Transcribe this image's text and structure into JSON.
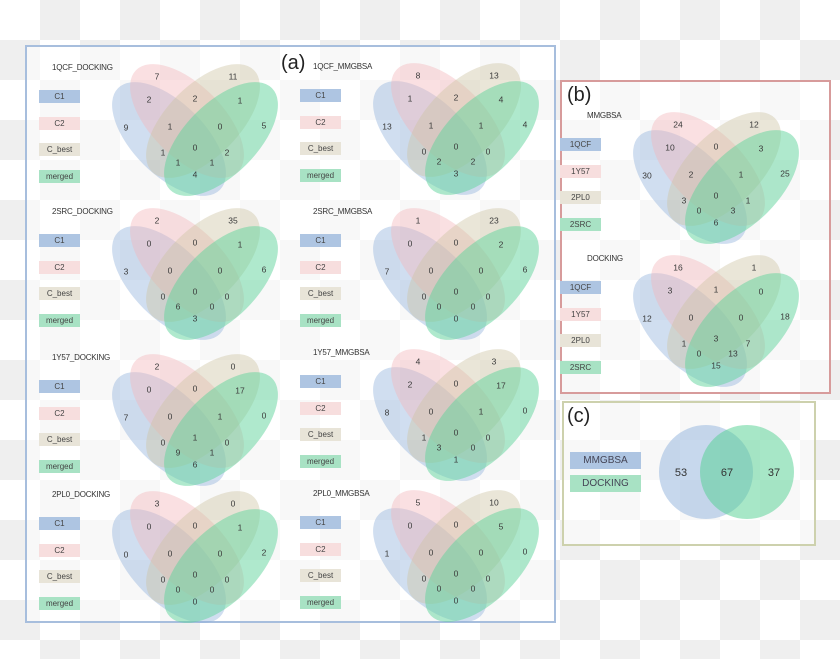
{
  "colors": {
    "set1": "#8fb1dc",
    "set2": "#f2b6bb",
    "set3": "#cdc3a2",
    "set4": "#5fd39b",
    "legend1": "#aec5e2",
    "legend2": "#f7dede",
    "legend3": "#e8e4d8",
    "legend4": "#a8e2c4"
  },
  "panels": {
    "a": {
      "label": "(a)",
      "venns": [
        {
          "title": "1QCF_DOCKING",
          "sets": [
            "C1",
            "C2",
            "C_best",
            "merged"
          ],
          "counts": [
            7,
            11,
            2,
            2,
            1,
            9,
            1,
            0,
            5,
            0,
            1,
            2,
            1,
            1,
            4
          ]
        },
        {
          "title": "1QCF_MMGBSA",
          "sets": [
            "C1",
            "C2",
            "C_best",
            "merged"
          ],
          "counts": [
            8,
            13,
            1,
            2,
            4,
            13,
            1,
            1,
            4,
            0,
            0,
            0,
            2,
            2,
            3
          ]
        },
        {
          "title": "2SRC_DOCKING",
          "sets": [
            "C1",
            "C2",
            "C_best",
            "merged"
          ],
          "counts": [
            2,
            35,
            0,
            0,
            1,
            3,
            0,
            0,
            6,
            0,
            0,
            0,
            6,
            0,
            3
          ]
        },
        {
          "title": "2SRC_MMGBSA",
          "sets": [
            "C1",
            "C2",
            "C_best",
            "merged"
          ],
          "counts": [
            1,
            23,
            0,
            0,
            2,
            7,
            0,
            0,
            6,
            0,
            0,
            0,
            0,
            0,
            0
          ]
        },
        {
          "title": "1Y57_DOCKING",
          "sets": [
            "C1",
            "C2",
            "C_best",
            "merged"
          ],
          "counts": [
            2,
            0,
            0,
            0,
            17,
            7,
            0,
            1,
            0,
            1,
            0,
            0,
            9,
            1,
            6
          ]
        },
        {
          "title": "1Y57_MMGBSA",
          "sets": [
            "C1",
            "C2",
            "C_best",
            "merged"
          ],
          "counts": [
            4,
            3,
            2,
            0,
            17,
            8,
            0,
            1,
            0,
            0,
            1,
            0,
            3,
            0,
            1
          ]
        },
        {
          "title": "2PL0_DOCKING",
          "sets": [
            "C1",
            "C2",
            "C_best",
            "merged"
          ],
          "counts": [
            3,
            0,
            0,
            0,
            1,
            0,
            0,
            0,
            2,
            0,
            0,
            0,
            0,
            0,
            0
          ]
        },
        {
          "title": "2PL0_MMGBSA",
          "sets": [
            "C1",
            "C2",
            "C_best",
            "merged"
          ],
          "counts": [
            5,
            10,
            0,
            0,
            5,
            1,
            0,
            0,
            0,
            0,
            0,
            0,
            0,
            0,
            0
          ]
        }
      ]
    },
    "b": {
      "label": "(b)",
      "venns": [
        {
          "title": "MMGBSA",
          "sets": [
            "1QCF",
            "1Y57",
            "2PL0",
            "2SRC"
          ],
          "counts": [
            24,
            12,
            10,
            0,
            3,
            30,
            2,
            1,
            25,
            0,
            3,
            1,
            0,
            3,
            6
          ]
        },
        {
          "title": "DOCKING",
          "sets": [
            "1QCF",
            "1Y57",
            "2PL0",
            "2SRC"
          ],
          "counts": [
            16,
            1,
            3,
            1,
            0,
            12,
            0,
            0,
            18,
            3,
            1,
            7,
            0,
            13,
            15
          ]
        }
      ]
    },
    "c": {
      "label": "(c)",
      "sets": [
        "MMGBSA",
        "DOCKING"
      ],
      "counts": {
        "only_first": 53,
        "both": 67,
        "only_second": 37
      }
    }
  }
}
